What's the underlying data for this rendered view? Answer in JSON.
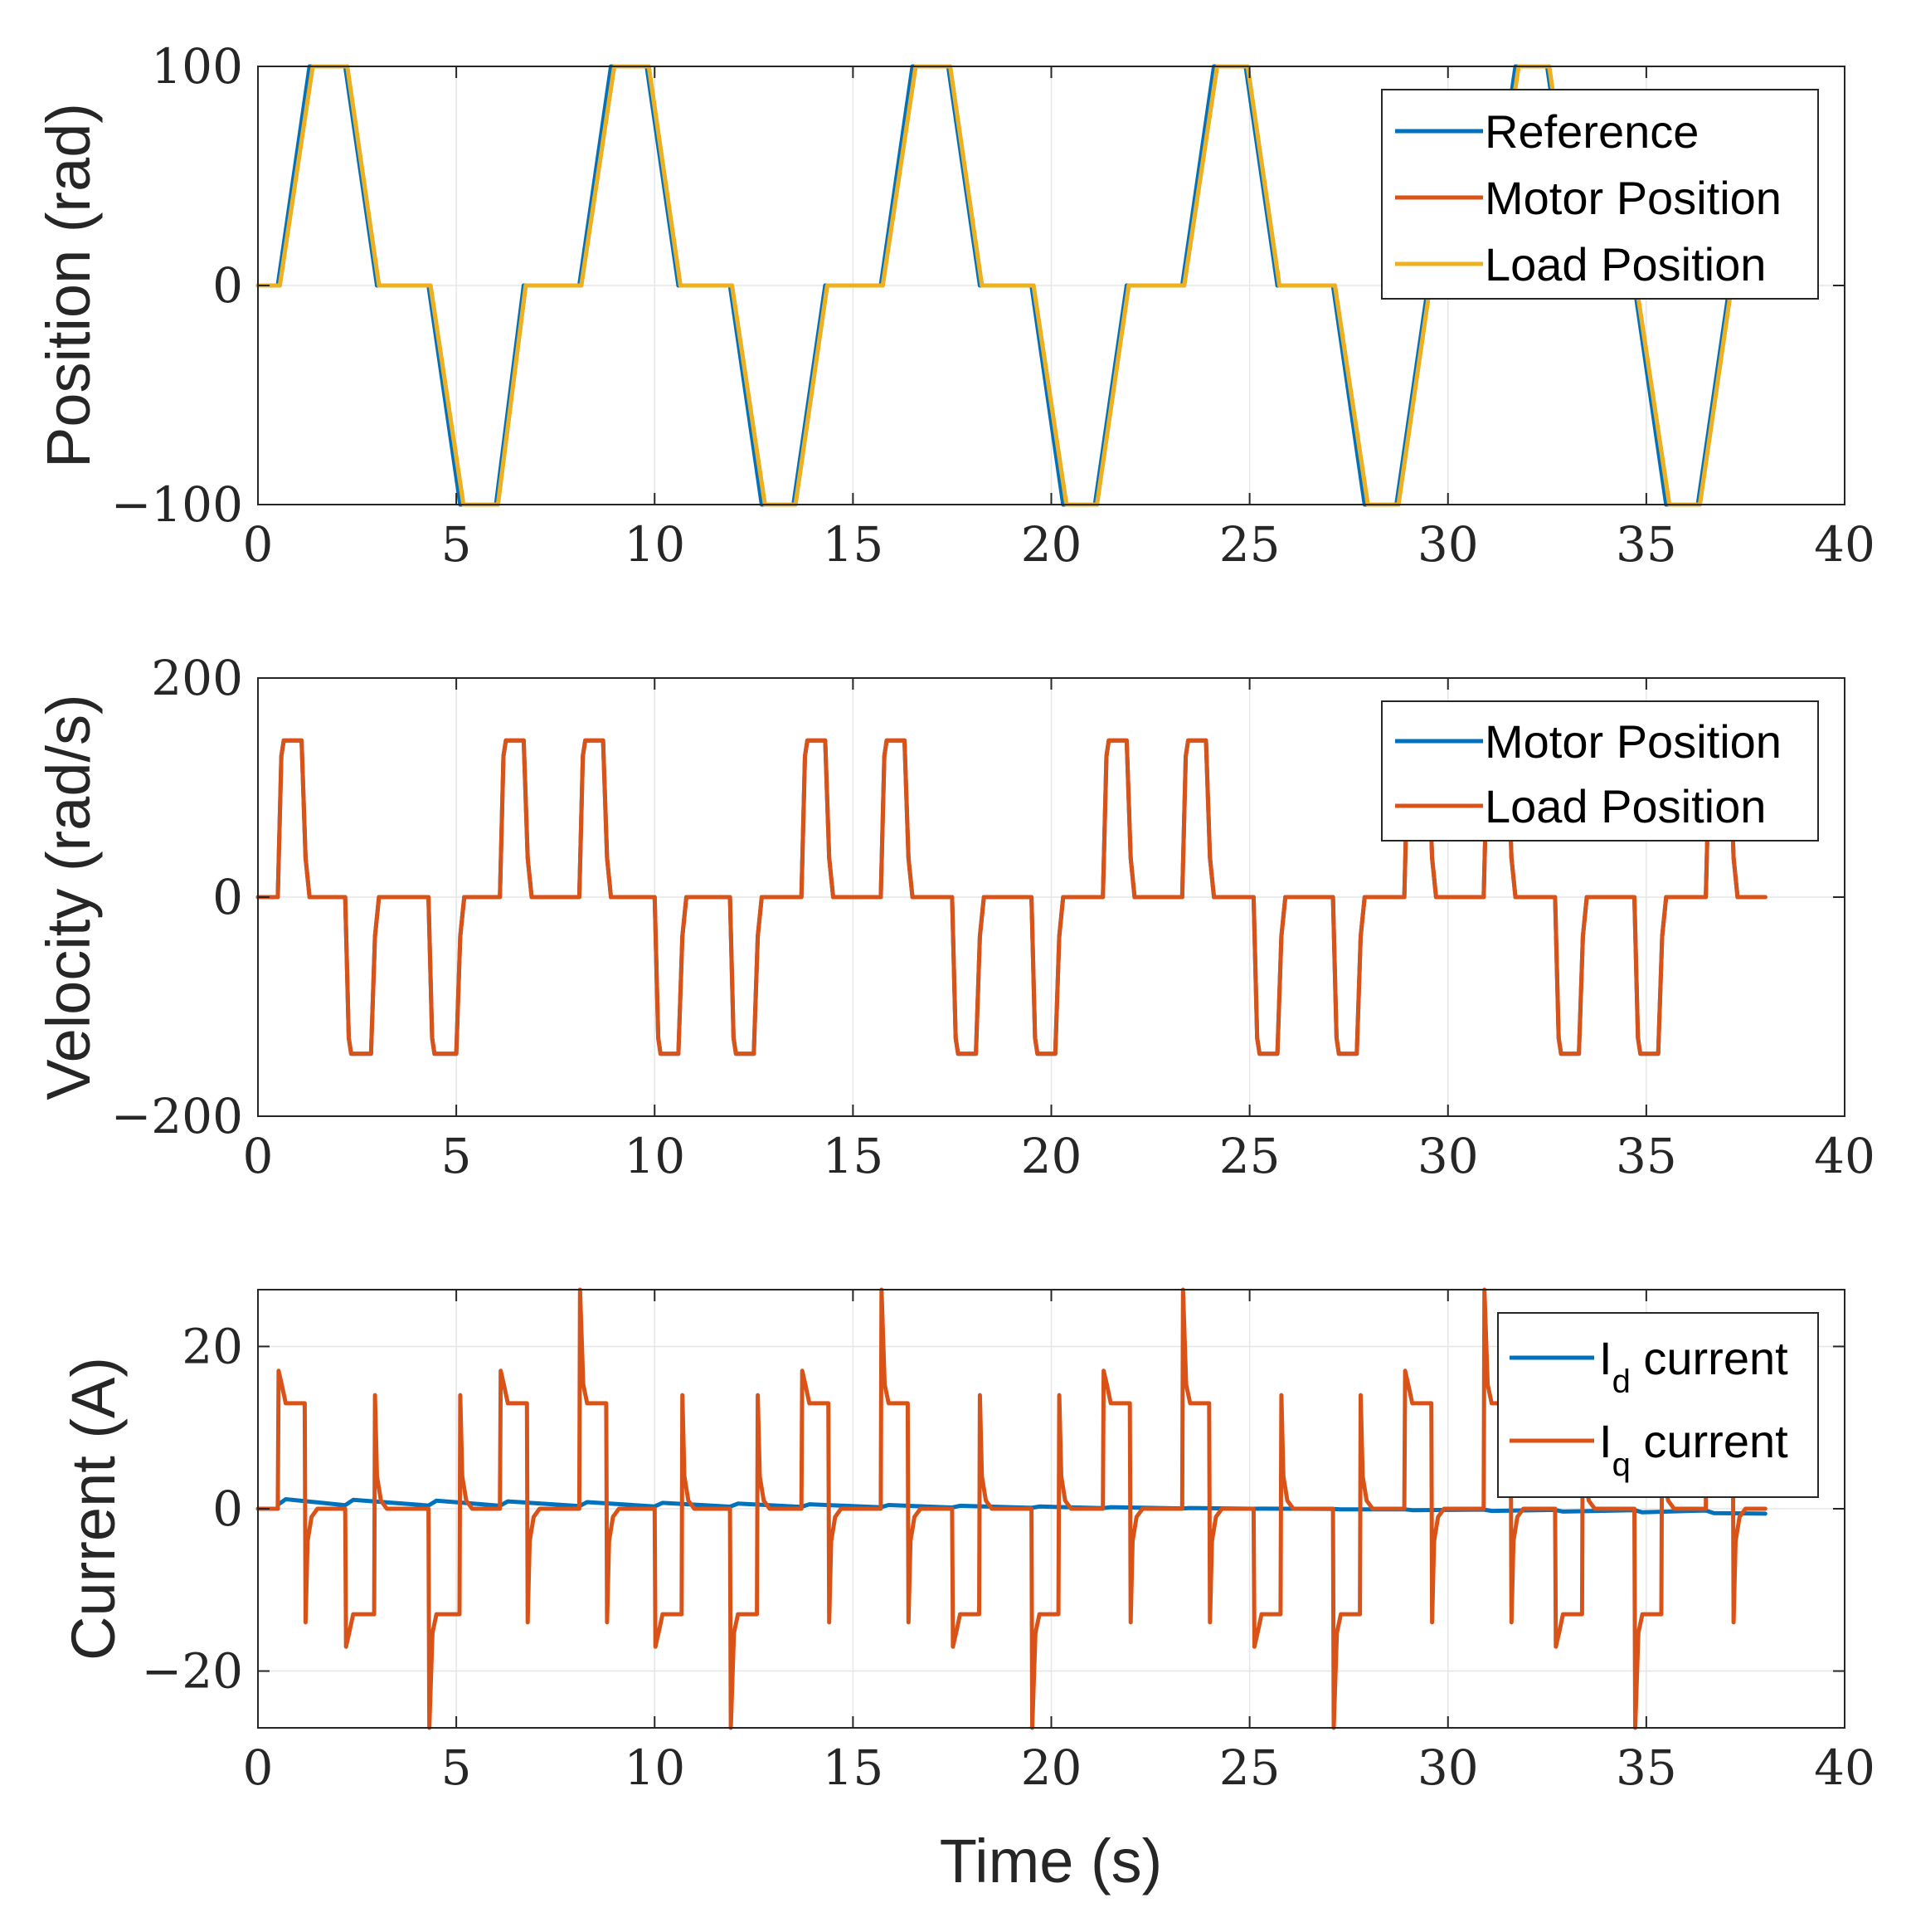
{
  "colors": {
    "reference": "#0072BD",
    "motor": "#D95319",
    "load": "#EDB120"
  },
  "chart_data": [
    {
      "type": "line",
      "ylabel": "Position (rad)",
      "xlabel": "",
      "xlim": [
        0,
        40
      ],
      "ylim": [
        -100,
        100
      ],
      "x_ticks": [
        "0",
        "5",
        "10",
        "15",
        "20",
        "25",
        "30",
        "35",
        "40"
      ],
      "y_ticks": [
        {
          "value": 100,
          "label": "100"
        },
        {
          "value": 0,
          "label": "0"
        },
        {
          "value": -100,
          "label": "−100"
        }
      ],
      "legend_position": "top-right",
      "legend": [
        {
          "label": "Reference",
          "color": "#0072BD"
        },
        {
          "label": "Motor Position",
          "color": "#D95319"
        },
        {
          "label": "Load Position",
          "color": "#EDB120"
        }
      ],
      "series": [
        {
          "name": "Reference",
          "color": "#0072BD",
          "points": [
            [
              0,
              0
            ],
            [
              0.5,
              0
            ],
            [
              1.3,
              100
            ],
            [
              2.2,
              100
            ],
            [
              3,
              0
            ],
            [
              4.3,
              0
            ],
            [
              5.1,
              -100
            ],
            [
              6,
              -100
            ],
            [
              6.7,
              0
            ],
            [
              8.1,
              0
            ],
            [
              8.9,
              100
            ],
            [
              9.8,
              100
            ],
            [
              10.6,
              0
            ],
            [
              11.9,
              0
            ],
            [
              12.7,
              -100
            ],
            [
              13.5,
              -100
            ],
            [
              14.3,
              0
            ],
            [
              15.7,
              0
            ],
            [
              16.5,
              100
            ],
            [
              17.4,
              100
            ],
            [
              18.2,
              0
            ],
            [
              19.5,
              0
            ],
            [
              20.3,
              -100
            ],
            [
              21.1,
              -100
            ],
            [
              21.9,
              0
            ],
            [
              23.3,
              0
            ],
            [
              24.1,
              100
            ],
            [
              24.9,
              100
            ],
            [
              25.7,
              0
            ],
            [
              27.1,
              0
            ],
            [
              27.9,
              -100
            ],
            [
              28.7,
              -100
            ],
            [
              29.5,
              0
            ],
            [
              30.9,
              0
            ],
            [
              31.7,
              100
            ],
            [
              32.5,
              100
            ],
            [
              33.3,
              0
            ],
            [
              34.7,
              0
            ],
            [
              35.5,
              -100
            ],
            [
              36.3,
              -100
            ],
            [
              37.1,
              0
            ],
            [
              38,
              0
            ]
          ]
        },
        {
          "name": "Motor Position",
          "color": "#D95319",
          "points": [
            [
              0,
              0
            ],
            [
              0.55,
              0
            ],
            [
              1.38,
              100
            ],
            [
              2.25,
              100
            ],
            [
              3.05,
              0
            ],
            [
              4.35,
              0
            ],
            [
              5.18,
              -100
            ],
            [
              6.05,
              -100
            ],
            [
              6.75,
              0
            ],
            [
              8.15,
              0
            ],
            [
              8.98,
              100
            ],
            [
              9.85,
              100
            ],
            [
              10.65,
              0
            ],
            [
              11.95,
              0
            ],
            [
              12.78,
              -100
            ],
            [
              13.55,
              -100
            ],
            [
              14.35,
              0
            ],
            [
              15.75,
              0
            ],
            [
              16.58,
              100
            ],
            [
              17.45,
              100
            ],
            [
              18.25,
              0
            ],
            [
              19.55,
              0
            ],
            [
              20.38,
              -100
            ],
            [
              21.15,
              -100
            ],
            [
              21.95,
              0
            ],
            [
              23.35,
              0
            ],
            [
              24.18,
              100
            ],
            [
              24.95,
              100
            ],
            [
              25.75,
              0
            ],
            [
              27.15,
              0
            ],
            [
              27.98,
              -100
            ],
            [
              28.75,
              -100
            ],
            [
              29.55,
              0
            ],
            [
              30.95,
              0
            ],
            [
              31.78,
              100
            ],
            [
              32.55,
              100
            ],
            [
              33.35,
              0
            ],
            [
              34.75,
              0
            ],
            [
              35.58,
              -100
            ],
            [
              36.35,
              -100
            ],
            [
              37.15,
              0
            ],
            [
              38,
              0
            ]
          ]
        },
        {
          "name": "Load Position",
          "color": "#EDB120",
          "points": [
            [
              0,
              0
            ],
            [
              0.55,
              0
            ],
            [
              1.38,
              100
            ],
            [
              2.25,
              100
            ],
            [
              3.05,
              0
            ],
            [
              4.35,
              0
            ],
            [
              5.18,
              -100
            ],
            [
              6.05,
              -100
            ],
            [
              6.75,
              0
            ],
            [
              8.15,
              0
            ],
            [
              8.98,
              100
            ],
            [
              9.85,
              100
            ],
            [
              10.65,
              0
            ],
            [
              11.95,
              0
            ],
            [
              12.78,
              -100
            ],
            [
              13.55,
              -100
            ],
            [
              14.35,
              0
            ],
            [
              15.75,
              0
            ],
            [
              16.58,
              100
            ],
            [
              17.45,
              100
            ],
            [
              18.25,
              0
            ],
            [
              19.55,
              0
            ],
            [
              20.38,
              -100
            ],
            [
              21.15,
              -100
            ],
            [
              21.95,
              0
            ],
            [
              23.35,
              0
            ],
            [
              24.18,
              100
            ],
            [
              24.95,
              100
            ],
            [
              25.75,
              0
            ],
            [
              27.15,
              0
            ],
            [
              27.98,
              -100
            ],
            [
              28.75,
              -100
            ],
            [
              29.55,
              0
            ],
            [
              30.95,
              0
            ],
            [
              31.78,
              100
            ],
            [
              32.55,
              100
            ],
            [
              33.35,
              0
            ],
            [
              34.75,
              0
            ],
            [
              35.58,
              -100
            ],
            [
              36.35,
              -100
            ],
            [
              37.15,
              0
            ],
            [
              38,
              0
            ]
          ]
        }
      ]
    },
    {
      "type": "line",
      "ylabel": "Velocity (rad/s)",
      "xlabel": "",
      "xlim": [
        0,
        40
      ],
      "ylim": [
        -200,
        200
      ],
      "x_ticks": [
        "0",
        "5",
        "10",
        "15",
        "20",
        "25",
        "30",
        "35",
        "40"
      ],
      "y_ticks": [
        {
          "value": 200,
          "label": "200"
        },
        {
          "value": 0,
          "label": "0"
        },
        {
          "value": -200,
          "label": "−200"
        }
      ],
      "legend_position": "top-right",
      "legend": [
        {
          "label": "Motor Position",
          "color": "#0072BD"
        },
        {
          "label": "Load Position",
          "color": "#D95319"
        }
      ],
      "pulse_shape": {
        "amplitude": 143,
        "rise": 0.15,
        "fall": 0.2
      },
      "pulses": [
        {
          "start": 0.5,
          "end": 1.2,
          "sign": 1
        },
        {
          "start": 2.2,
          "end": 2.95,
          "sign": -1
        },
        {
          "start": 4.3,
          "end": 5.1,
          "sign": -1
        },
        {
          "start": 6.1,
          "end": 6.8,
          "sign": 1
        },
        {
          "start": 8.1,
          "end": 8.8,
          "sign": 1
        },
        {
          "start": 10.0,
          "end": 10.7,
          "sign": -1
        },
        {
          "start": 11.9,
          "end": 12.6,
          "sign": -1
        },
        {
          "start": 13.7,
          "end": 14.4,
          "sign": 1
        },
        {
          "start": 15.7,
          "end": 16.4,
          "sign": 1
        },
        {
          "start": 17.5,
          "end": 18.2,
          "sign": -1
        },
        {
          "start": 19.5,
          "end": 20.2,
          "sign": -1
        },
        {
          "start": 21.3,
          "end": 22.0,
          "sign": 1
        },
        {
          "start": 23.3,
          "end": 24.0,
          "sign": 1
        },
        {
          "start": 25.1,
          "end": 25.8,
          "sign": -1
        },
        {
          "start": 27.1,
          "end": 27.8,
          "sign": -1
        },
        {
          "start": 28.9,
          "end": 29.6,
          "sign": 1
        },
        {
          "start": 30.9,
          "end": 31.6,
          "sign": 1
        },
        {
          "start": 32.7,
          "end": 33.4,
          "sign": -1
        },
        {
          "start": 34.7,
          "end": 35.4,
          "sign": -1
        },
        {
          "start": 36.5,
          "end": 37.2,
          "sign": 1
        }
      ],
      "x_end": 38,
      "series": [
        {
          "name": "Motor Position",
          "color": "#0072BD"
        },
        {
          "name": "Load Position",
          "color": "#D95319"
        }
      ]
    },
    {
      "type": "line",
      "ylabel": "Current (A)",
      "xlabel": "Time (s)",
      "xlim": [
        0,
        40
      ],
      "ylim": [
        -27,
        27
      ],
      "x_ticks": [
        "0",
        "5",
        "10",
        "15",
        "20",
        "25",
        "30",
        "35",
        "40"
      ],
      "y_ticks": [
        {
          "value": 20,
          "label": "20"
        },
        {
          "value": 0,
          "label": "0"
        },
        {
          "value": -20,
          "label": "−20"
        }
      ],
      "legend_position": "top-right",
      "legend": [
        {
          "label": "I",
          "subscript": "d",
          "suffix": " current",
          "color": "#0072BD"
        },
        {
          "label": "I",
          "subscript": "q",
          "suffix": " current",
          "color": "#D95319"
        }
      ],
      "iq_shape": {
        "spike": 17,
        "plateau": 13,
        "overshoot": 14,
        "end_dip": 4
      },
      "iq_big_spikes": [
        {
          "t": 8.1,
          "value": 27
        },
        {
          "t": 15.7,
          "value": 27
        },
        {
          "t": 23.3,
          "value": 27
        },
        {
          "t": 30.9,
          "value": 27
        },
        {
          "t": 4.3,
          "value": -27
        },
        {
          "t": 11.9,
          "value": -27
        },
        {
          "t": 19.5,
          "value": -27
        },
        {
          "t": 27.1,
          "value": -27
        },
        {
          "t": 34.7,
          "value": -27
        }
      ],
      "id_levels": {
        "start": 1.2,
        "end": -0.6
      },
      "x_end": 38,
      "series": [
        {
          "name": "Id current",
          "color": "#0072BD"
        },
        {
          "name": "Iq current",
          "color": "#D95319"
        }
      ]
    }
  ]
}
